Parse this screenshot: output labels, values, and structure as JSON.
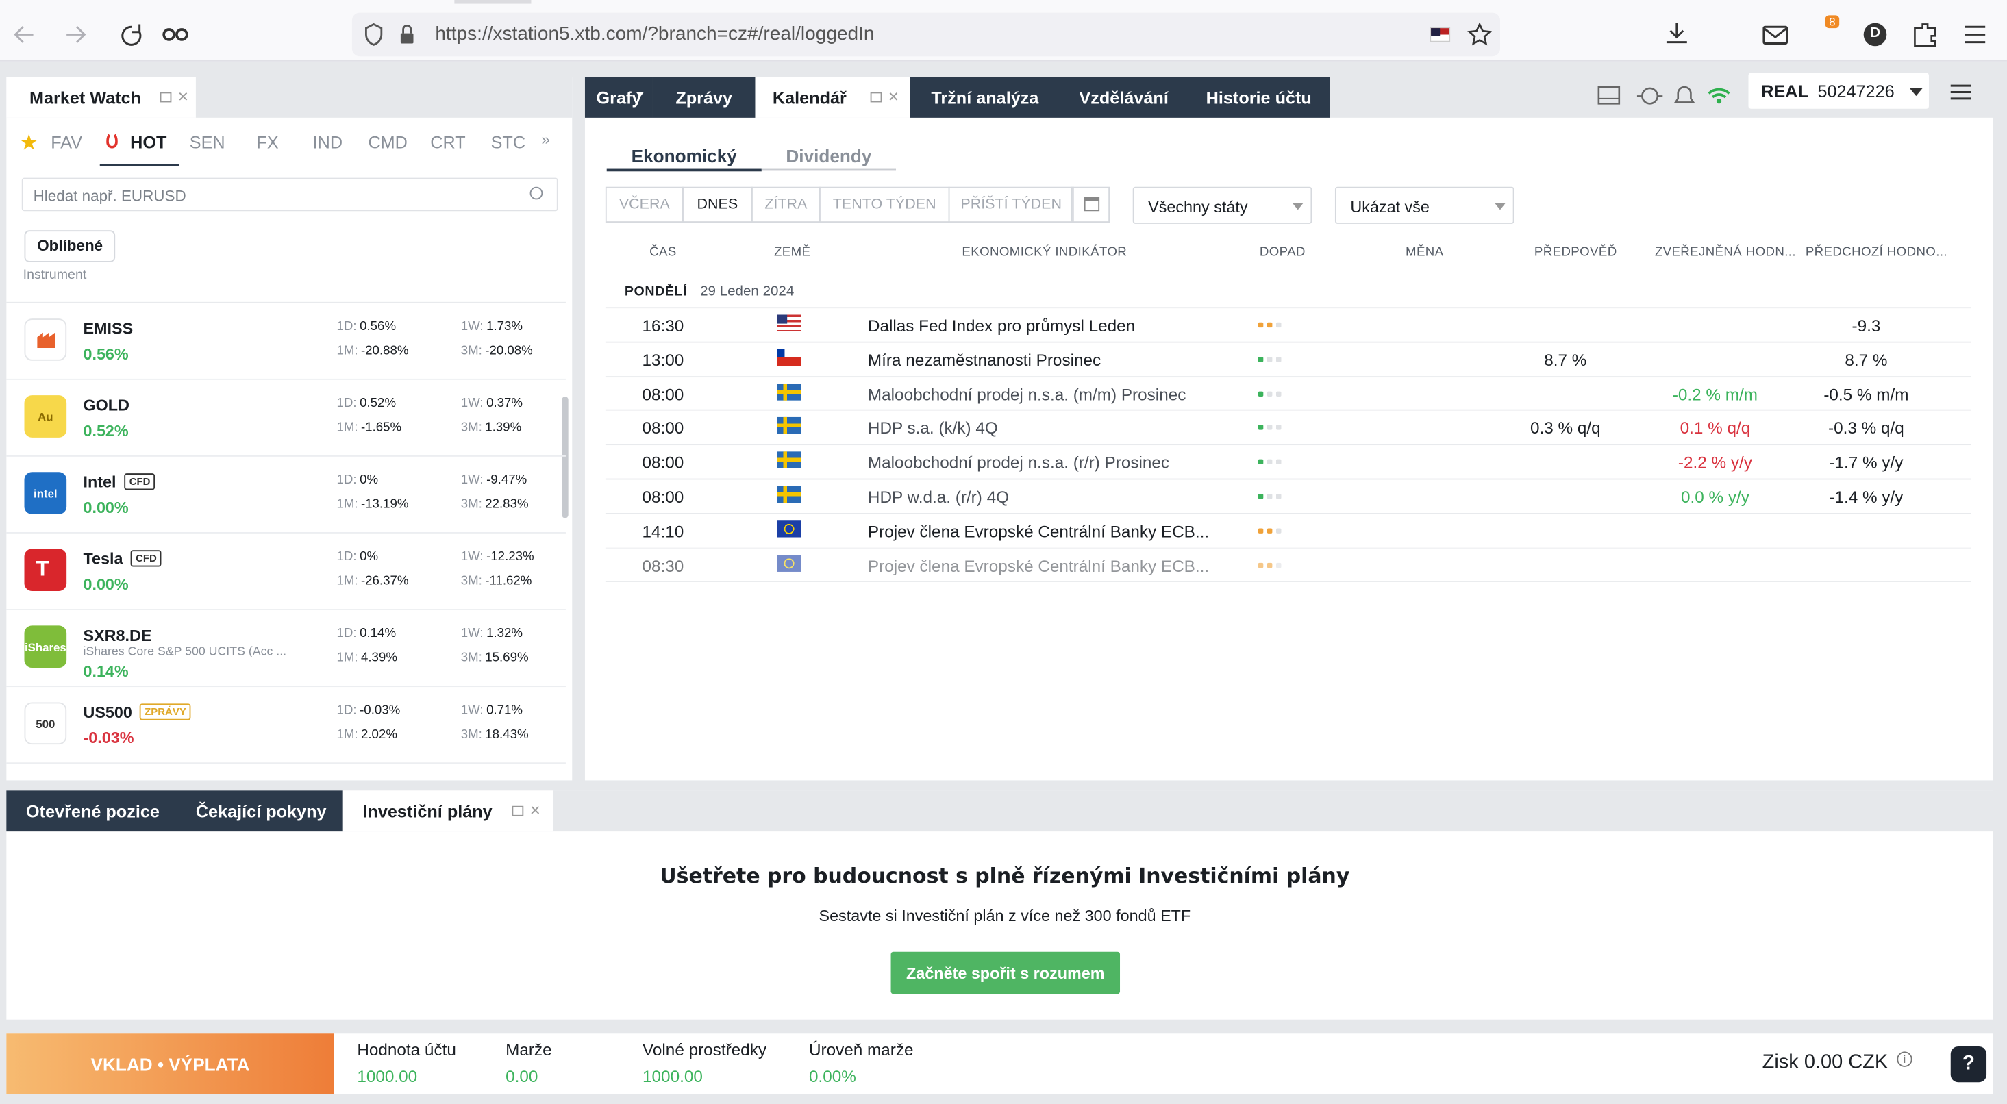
{
  "browser": {
    "url": "https://xstation5.xtb.com/?branch=cz#/real/loggedIn",
    "notification_count": "8",
    "profile": "D"
  },
  "market_watch": {
    "title": "Market Watch",
    "tabs": [
      "FAV",
      "HOT",
      "SEN",
      "FX",
      "IND",
      "CMD",
      "CRT",
      "STC"
    ],
    "search_placeholder": "Hledat např. EURUSD",
    "filter": "Oblíbené",
    "column": "Instrument",
    "period_labels": [
      "1D:",
      "1W:",
      "1M:",
      "3M:"
    ],
    "instruments": [
      {
        "symbol": "EMISS",
        "change": "0.56%",
        "d1": "0.56%",
        "w1": "1.73%",
        "m1": "-20.88%",
        "m3": "-20.08%"
      },
      {
        "symbol": "GOLD",
        "icon_text": "Au",
        "change": "0.52%",
        "d1": "0.52%",
        "w1": "0.37%",
        "m1": "-1.65%",
        "m3": "1.39%"
      },
      {
        "symbol": "Intel",
        "icon_text": "intel",
        "badge": "CFD",
        "change": "0.00%",
        "d1": "0%",
        "w1": "-9.47%",
        "m1": "-13.19%",
        "m3": "22.83%"
      },
      {
        "symbol": "Tesla",
        "badge": "CFD",
        "change": "0.00%",
        "d1": "0%",
        "w1": "-12.23%",
        "m1": "-26.37%",
        "m3": "-11.62%"
      },
      {
        "symbol": "SXR8.DE",
        "icon_text": "iShares",
        "subtitle": "iShares Core S&P 500 UCITS (Acc ...",
        "change": "0.14%",
        "d1": "0.14%",
        "w1": "1.32%",
        "m1": "4.39%",
        "m3": "15.69%"
      },
      {
        "symbol": "US500",
        "icon_text": "500",
        "badge": "ZPRÁVY",
        "change": "-0.03%",
        "d1": "-0.03%",
        "w1": "0.71%",
        "m1": "2.02%",
        "m3": "18.43%"
      }
    ]
  },
  "main_tabs": [
    "Grafy",
    "Zprávy",
    "Kalendář",
    "Tržní analýza",
    "Vzdělávání",
    "Historie účtu"
  ],
  "account": {
    "type": "REAL",
    "number": "50247226"
  },
  "calendar": {
    "subtabs": [
      "Ekonomický",
      "Dividendy"
    ],
    "filters": [
      "VČERA",
      "DNES",
      "ZÍTRA",
      "TENTO TÝDEN",
      "PŘÍŠTÍ TÝDEN"
    ],
    "country_select": "Všechny státy",
    "show_select": "Ukázat vše",
    "columns": [
      "ČAS",
      "ZEMĚ",
      "EKONOMICKÝ INDIKÁTOR",
      "DOPAD",
      "MĚNA",
      "PŘEDPOVĚĎ",
      "ZVEŘEJNĚNÁ HODN...",
      "PŘEDCHOZÍ HODNO..."
    ],
    "day": "PONDĚLÍ",
    "date": "29 Leden 2024",
    "rows": [
      {
        "time": "16:30",
        "indicator": "Dallas Fed Index pro průmysl Leden",
        "previous": "-9.3"
      },
      {
        "time": "13:00",
        "indicator": "Míra nezaměstnanosti Prosinec",
        "forecast": "8.7 %",
        "previous": "8.7 %"
      },
      {
        "time": "08:00",
        "indicator": "Maloobchodní prodej n.s.a. (m/m) Prosinec",
        "actual": "-0.2 % m/m",
        "previous": "-0.5 % m/m"
      },
      {
        "time": "08:00",
        "indicator": "HDP s.a. (k/k) 4Q",
        "forecast": "0.3 % q/q",
        "actual": "0.1 % q/q",
        "previous": "-0.3 % q/q"
      },
      {
        "time": "08:00",
        "indicator": "Maloobchodní prodej n.s.a. (r/r) Prosinec",
        "actual": "-2.2 % y/y",
        "previous": "-1.7 % y/y"
      },
      {
        "time": "08:00",
        "indicator": "HDP w.d.a. (r/r) 4Q",
        "actual": "0.0 % y/y",
        "previous": "-1.4 % y/y"
      },
      {
        "time": "14:10",
        "indicator": "Projev člena Evropské Centrální Banky ECB..."
      },
      {
        "time": "08:30",
        "indicator": "Projev člena Evropské Centrální Banky ECB..."
      }
    ]
  },
  "bottom_tabs": [
    "Otevřené pozice",
    "Čekající pokyny",
    "Investiční plány"
  ],
  "investment": {
    "title": "Ušetřete pro budoucnost s plně řízenými Investičními plány",
    "subtitle": "Sestavte si Investiční plán z více než 300 fondů ETF",
    "button": "Začněte spořit s rozumem"
  },
  "footer": {
    "deposit": "VKLAD • VÝPLATA",
    "stats": [
      {
        "label": "Hodnota účtu",
        "value": "1000.00"
      },
      {
        "label": "Marže",
        "value": "0.00"
      },
      {
        "label": "Volné prostředky",
        "value": "1000.00"
      },
      {
        "label": "Úroveň marže",
        "value": "0.00%"
      }
    ],
    "profit": "Zisk 0.00 CZK",
    "help": "?"
  }
}
